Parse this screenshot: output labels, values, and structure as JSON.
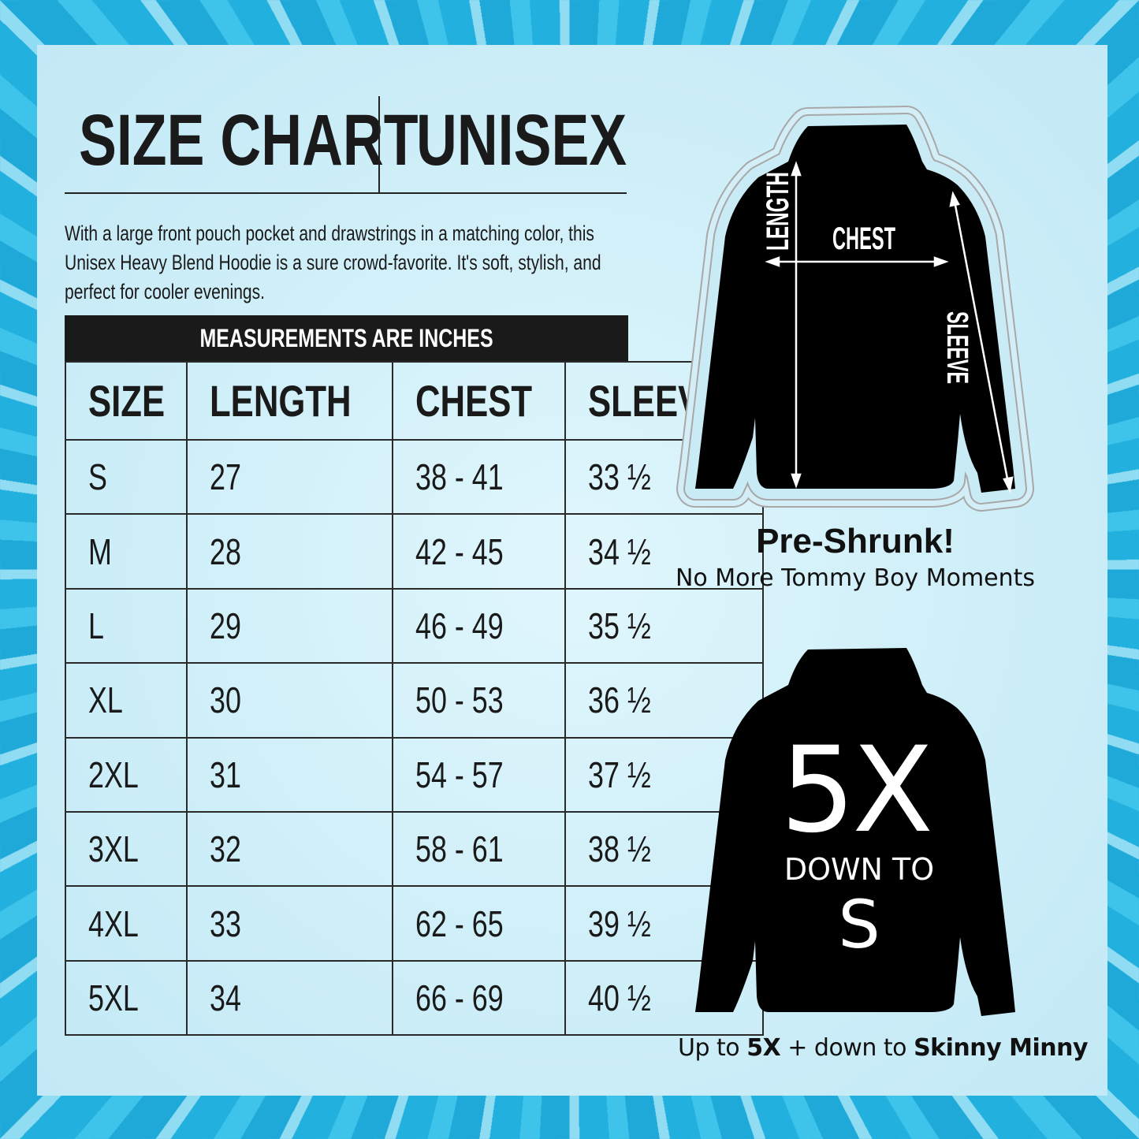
{
  "header": {
    "title": "SIZE CHART",
    "subtitle": "UNISEX"
  },
  "description": "With a large front pouch pocket and drawstrings in a matching color, this Unisex Heavy Blend Hoodie is a sure crowd-favorite. It's soft, stylish, and perfect for cooler evenings.",
  "table": {
    "caption": "MEASUREMENTS ARE INCHES",
    "columns": [
      "SIZE",
      "LENGTH",
      "CHEST",
      "SLEEVE"
    ],
    "rows": [
      [
        "S",
        "27",
        "38 - 41",
        "33 ½"
      ],
      [
        "M",
        "28",
        "42 - 45",
        "34 ½"
      ],
      [
        "L",
        "29",
        "46 - 49",
        "35 ½"
      ],
      [
        "XL",
        "30",
        "50 - 53",
        "36 ½"
      ],
      [
        "2XL",
        "31",
        "54 - 57",
        "37 ½"
      ],
      [
        "3XL",
        "32",
        "58 - 61",
        "38 ½"
      ],
      [
        "4XL",
        "33",
        "62 - 65",
        "39 ½"
      ],
      [
        "5XL",
        "34",
        "66 - 69",
        "40 ½"
      ]
    ]
  },
  "diagram": {
    "length_label": "LENGTH",
    "chest_label": "CHEST",
    "sleeve_label": "SLEEVE"
  },
  "preshrunk": {
    "title": "Pre-Shrunk!",
    "subtitle": "No More Tommy Boy Moments"
  },
  "range": {
    "big": "5X",
    "middle": "DOWN TO",
    "small": "S"
  },
  "footer": {
    "prefix": "Up to ",
    "bold1": "5X",
    "mid": " + down to ",
    "bold2": "Skinny Minny"
  },
  "colors": {
    "border": "#29b6e0",
    "panel": "#cfeef8",
    "ink": "#1a1a1a"
  }
}
